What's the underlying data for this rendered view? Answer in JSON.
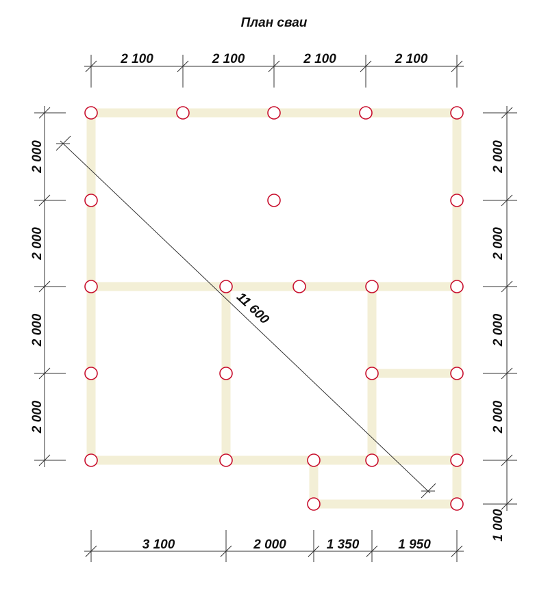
{
  "title": "План сваи",
  "dimensions": {
    "top": [
      "2 100",
      "2 100",
      "2 100",
      "2 100"
    ],
    "left": [
      "2 000",
      "2 000",
      "2 000",
      "2 000"
    ],
    "right": [
      "2 000",
      "2 000",
      "2 000",
      "2 000",
      "1 000"
    ],
    "bottom": [
      "3 100",
      "2 000",
      "1 350",
      "1 950"
    ],
    "diagonal": "11 600"
  },
  "colors": {
    "beam": "#f3efd6",
    "pile": "#c8102e",
    "line": "#333333"
  }
}
